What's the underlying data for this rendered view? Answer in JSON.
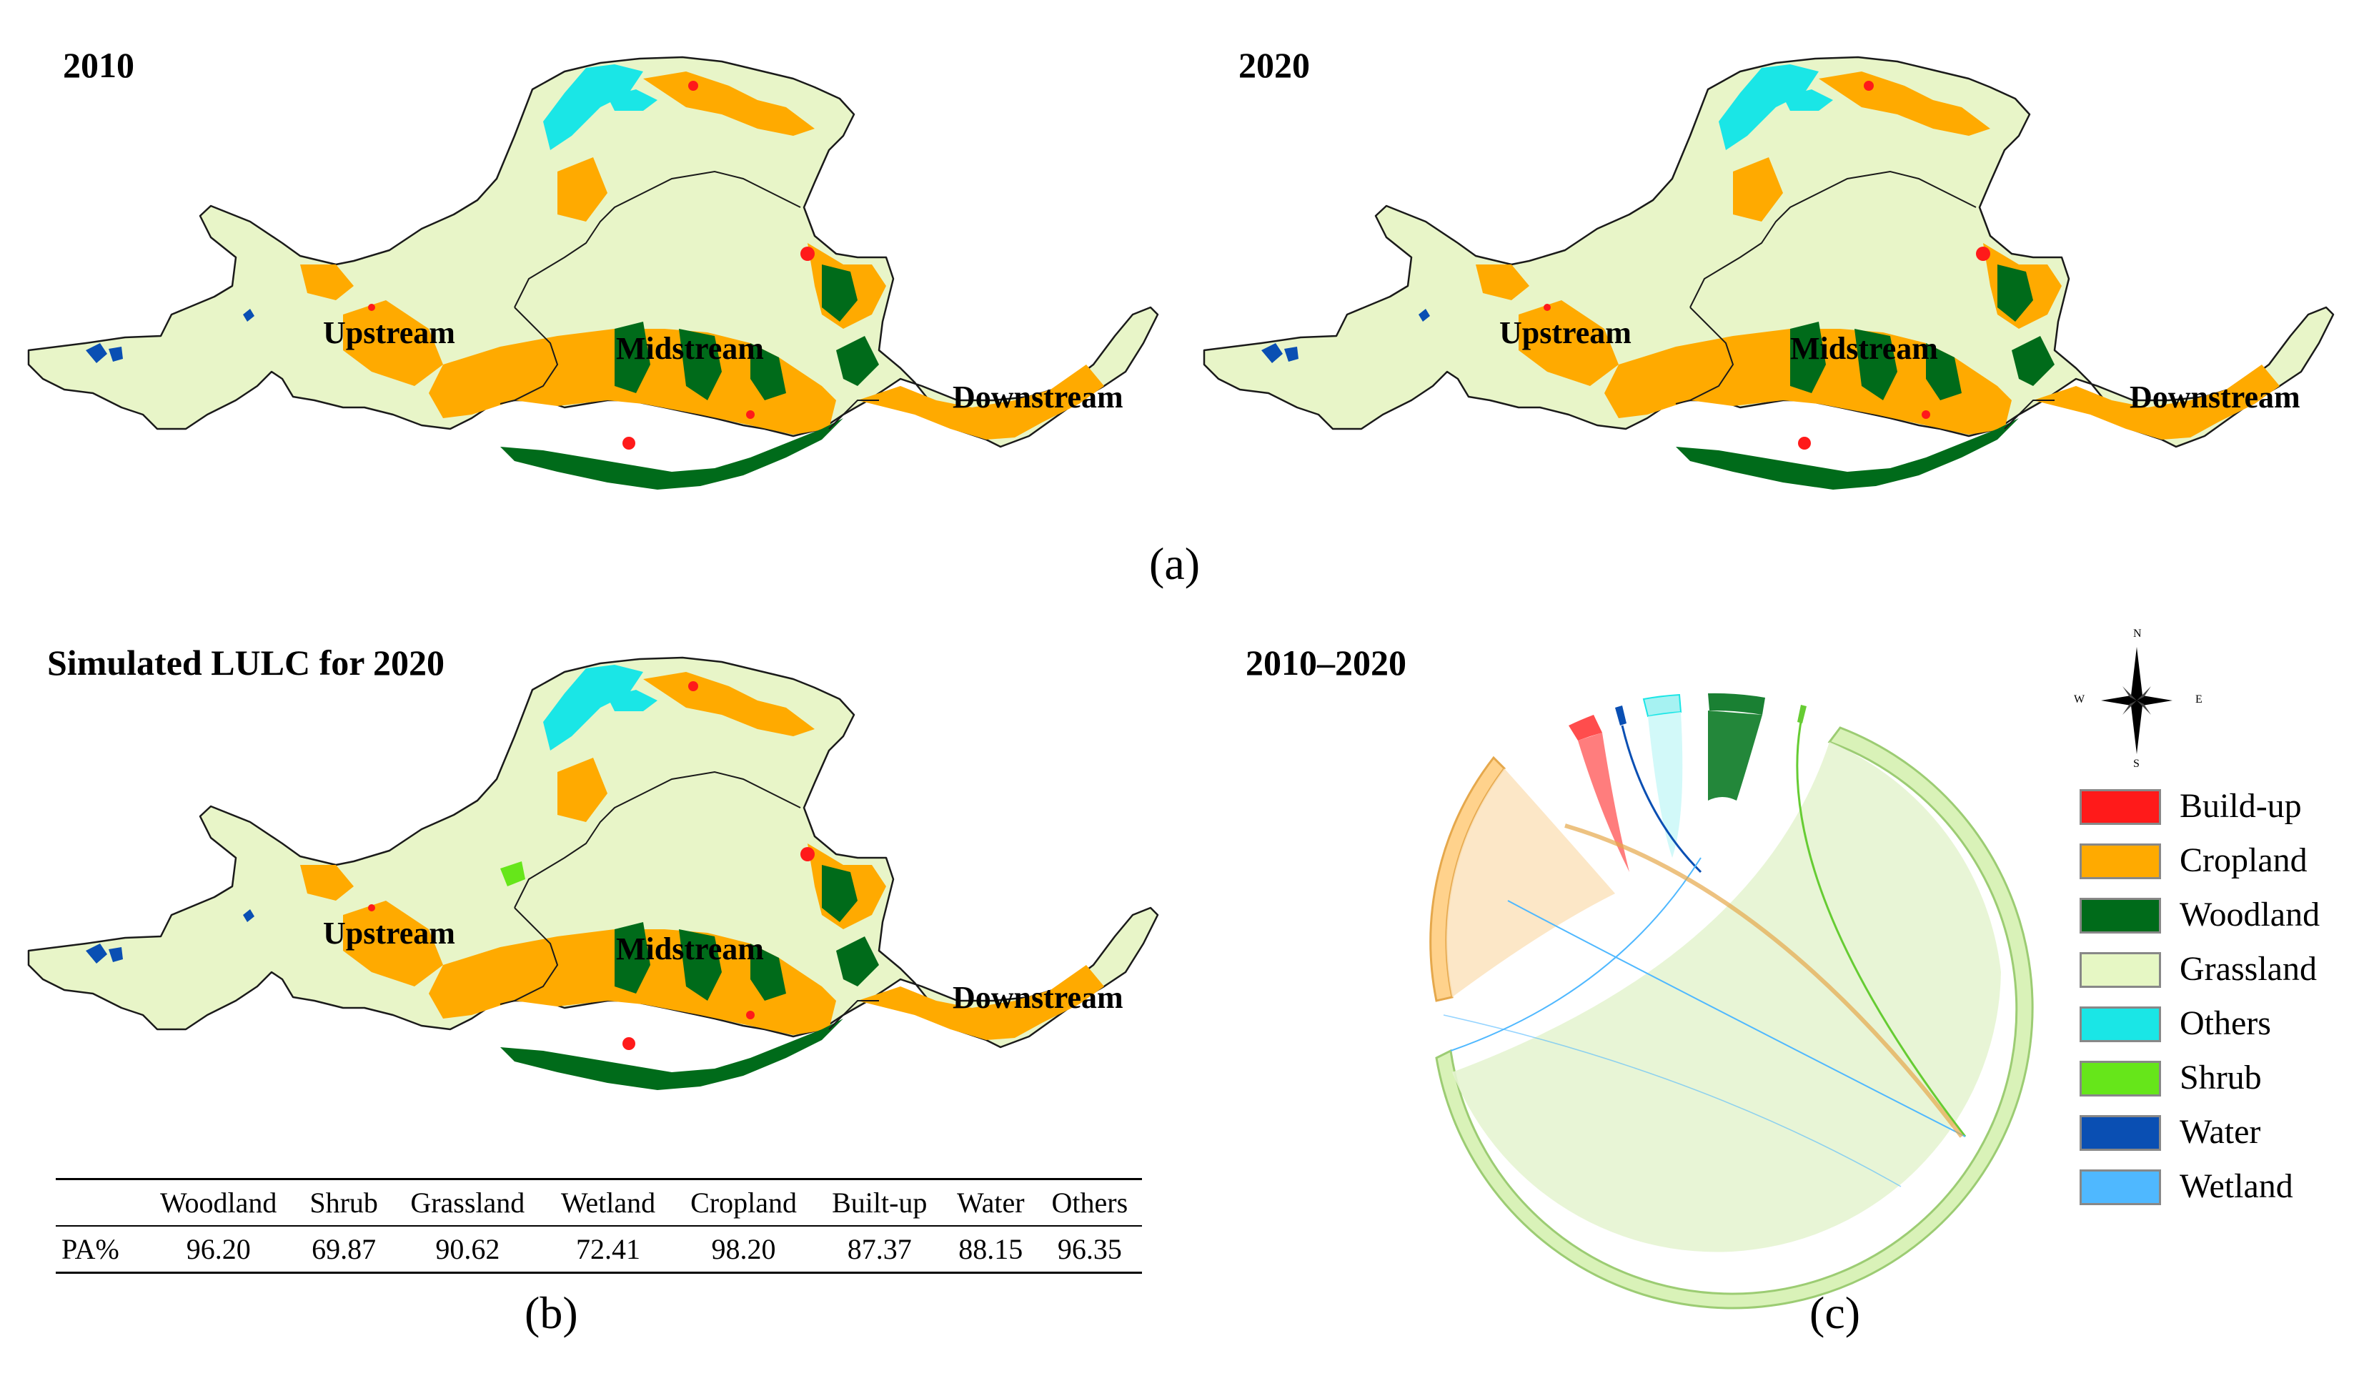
{
  "panels": {
    "map_2010": {
      "title": "2010",
      "regions": {
        "upstream": "Upstream",
        "midstream": "Midstream",
        "downstream": "Downstream"
      }
    },
    "map_2020": {
      "title": "2020",
      "regions": {
        "upstream": "Upstream",
        "midstream": "Midstream",
        "downstream": "Downstream"
      }
    },
    "map_sim": {
      "title": "Simulated LULC for 2020",
      "regions": {
        "upstream": "Upstream",
        "midstream": "Midstream",
        "downstream": "Downstream"
      }
    },
    "chord": {
      "title": "2010–2020"
    }
  },
  "captions": {
    "a": "(a)",
    "b": "(b)",
    "c": "(c)"
  },
  "accuracy_table": {
    "columns": [
      "",
      "Woodland",
      "Shrub",
      "Grassland",
      "Wetland",
      "Cropland",
      "Built-up",
      "Water",
      "Others"
    ],
    "row_label": "PA%",
    "values": [
      "96.20",
      "69.87",
      "90.62",
      "72.41",
      "98.20",
      "87.37",
      "88.15",
      "96.35"
    ]
  },
  "compass": {
    "n": "N",
    "s": "S",
    "e": "E",
    "w": "W"
  },
  "legend": [
    {
      "label": "Build-up",
      "color": "#ff1a1a"
    },
    {
      "label": "Cropland",
      "color": "#ffaa00"
    },
    {
      "label": "Woodland",
      "color": "#006b1a"
    },
    {
      "label": "Grassland",
      "color": "#e6f7c4"
    },
    {
      "label": "Others",
      "color": "#1ae6e6"
    },
    {
      "label": "Shrub",
      "color": "#66e61a"
    },
    {
      "label": "Water",
      "color": "#0a4fb3"
    },
    {
      "label": "Wetland",
      "color": "#4fb8ff"
    }
  ],
  "chord_data": {
    "type": "chord",
    "categories": [
      "Cropland",
      "Build-up",
      "Water",
      "Others",
      "Woodland",
      "Shrub",
      "Grassland"
    ],
    "colors": [
      "#ffaa00",
      "#ff1a1a",
      "#0a4fb3",
      "#1ae6e6",
      "#006b1a",
      "#66e61a",
      "#b8e68c"
    ]
  }
}
